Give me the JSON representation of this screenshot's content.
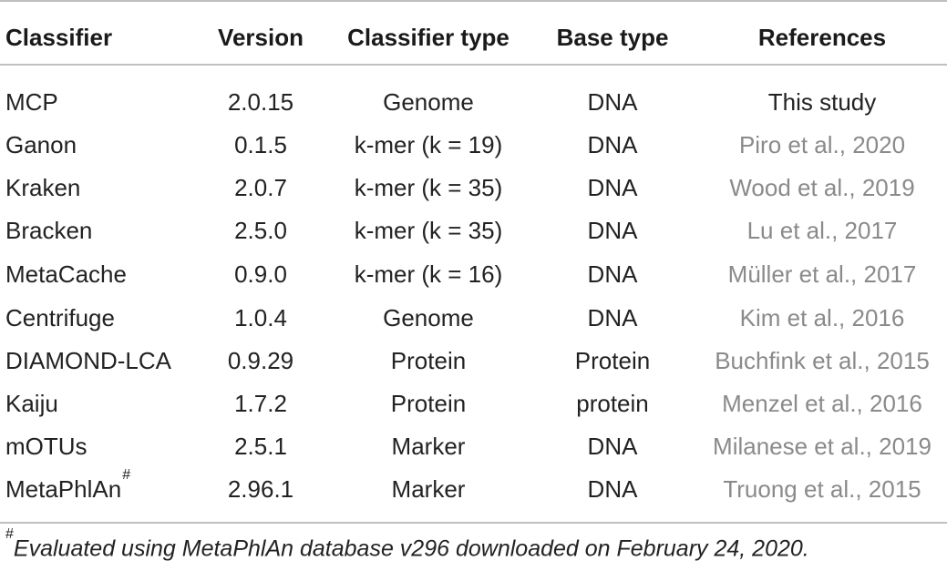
{
  "table": {
    "headers": [
      "Classifier",
      "Version",
      "Classifier type",
      "Base type",
      "References"
    ],
    "rows": [
      {
        "classifier": "MCP",
        "version": "2.0.15",
        "type": "Genome",
        "base": "DNA",
        "ref": "This study"
      },
      {
        "classifier": "Ganon",
        "version": "0.1.5",
        "type": "k-mer (k = 19)",
        "base": "DNA",
        "ref": "Piro et al., 2020"
      },
      {
        "classifier": "Kraken",
        "version": "2.0.7",
        "type": "k-mer (k = 35)",
        "base": "DNA",
        "ref": "Wood et al., 2019"
      },
      {
        "classifier": "Bracken",
        "version": "2.5.0",
        "type": "k-mer (k = 35)",
        "base": "DNA",
        "ref": "Lu et al., 2017"
      },
      {
        "classifier": "MetaCache",
        "version": "0.9.0",
        "type": "k-mer (k = 16)",
        "base": "DNA",
        "ref": "Müller et al., 2017"
      },
      {
        "classifier": "Centrifuge",
        "version": "1.0.4",
        "type": "Genome",
        "base": "DNA",
        "ref": "Kim et al., 2016"
      },
      {
        "classifier": "DIAMOND-LCA",
        "version": "0.9.29",
        "type": "Protein",
        "base": "Protein",
        "ref": "Buchfink et al., 2015"
      },
      {
        "classifier": "Kaiju",
        "version": "1.7.2",
        "type": "Protein",
        "base": "protein",
        "ref": "Menzel et al., 2016"
      },
      {
        "classifier": "mOTUs",
        "version": "2.5.1",
        "type": "Marker",
        "base": "DNA",
        "ref": "Milanese et al., 2019"
      },
      {
        "classifier": "MetaPhlAn",
        "classifier_mark": "#",
        "version": "2.96.1",
        "type": "Marker",
        "base": "DNA",
        "ref": "Truong et al., 2015"
      }
    ]
  },
  "footnote": {
    "mark": "#",
    "text": "Evaluated using MetaPhlAn database v296 downloaded on February 24, 2020."
  },
  "colors": {
    "text": "#222222",
    "reference_link": "#8a8a8a",
    "rule": "#bfbfbf"
  }
}
